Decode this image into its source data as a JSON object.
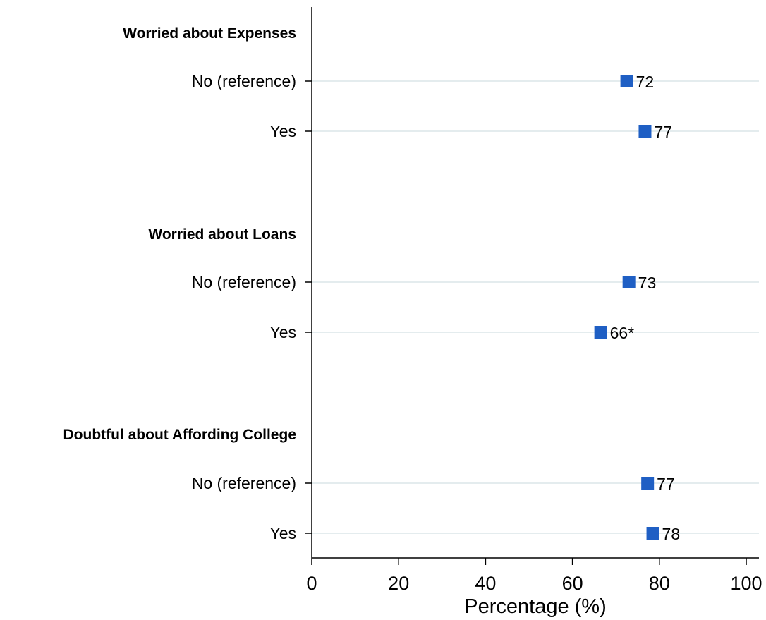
{
  "chart_data": {
    "type": "scatter",
    "xlabel": "Percentage (%)",
    "xlim": [
      0,
      100
    ],
    "xticks": [
      0,
      20,
      40,
      60,
      80,
      100
    ],
    "marker": "square",
    "marker_color": "#1f5fc4",
    "gridline_color": "#e4ecee",
    "groups": [
      {
        "name": "Worried about Expenses",
        "rows": [
          {
            "label": "No (reference)",
            "value": 72.5,
            "value_label": "72"
          },
          {
            "label": "Yes",
            "value": 76.7,
            "value_label": "77"
          }
        ]
      },
      {
        "name": "Worried about Loans",
        "rows": [
          {
            "label": "No (reference)",
            "value": 73.0,
            "value_label": "73"
          },
          {
            "label": "Yes",
            "value": 66.5,
            "value_label": "66*"
          }
        ]
      },
      {
        "name": "Doubtful about Affording College",
        "rows": [
          {
            "label": "No (reference)",
            "value": 77.3,
            "value_label": "77"
          },
          {
            "label": "Yes",
            "value": 78.5,
            "value_label": "78"
          }
        ]
      }
    ]
  }
}
